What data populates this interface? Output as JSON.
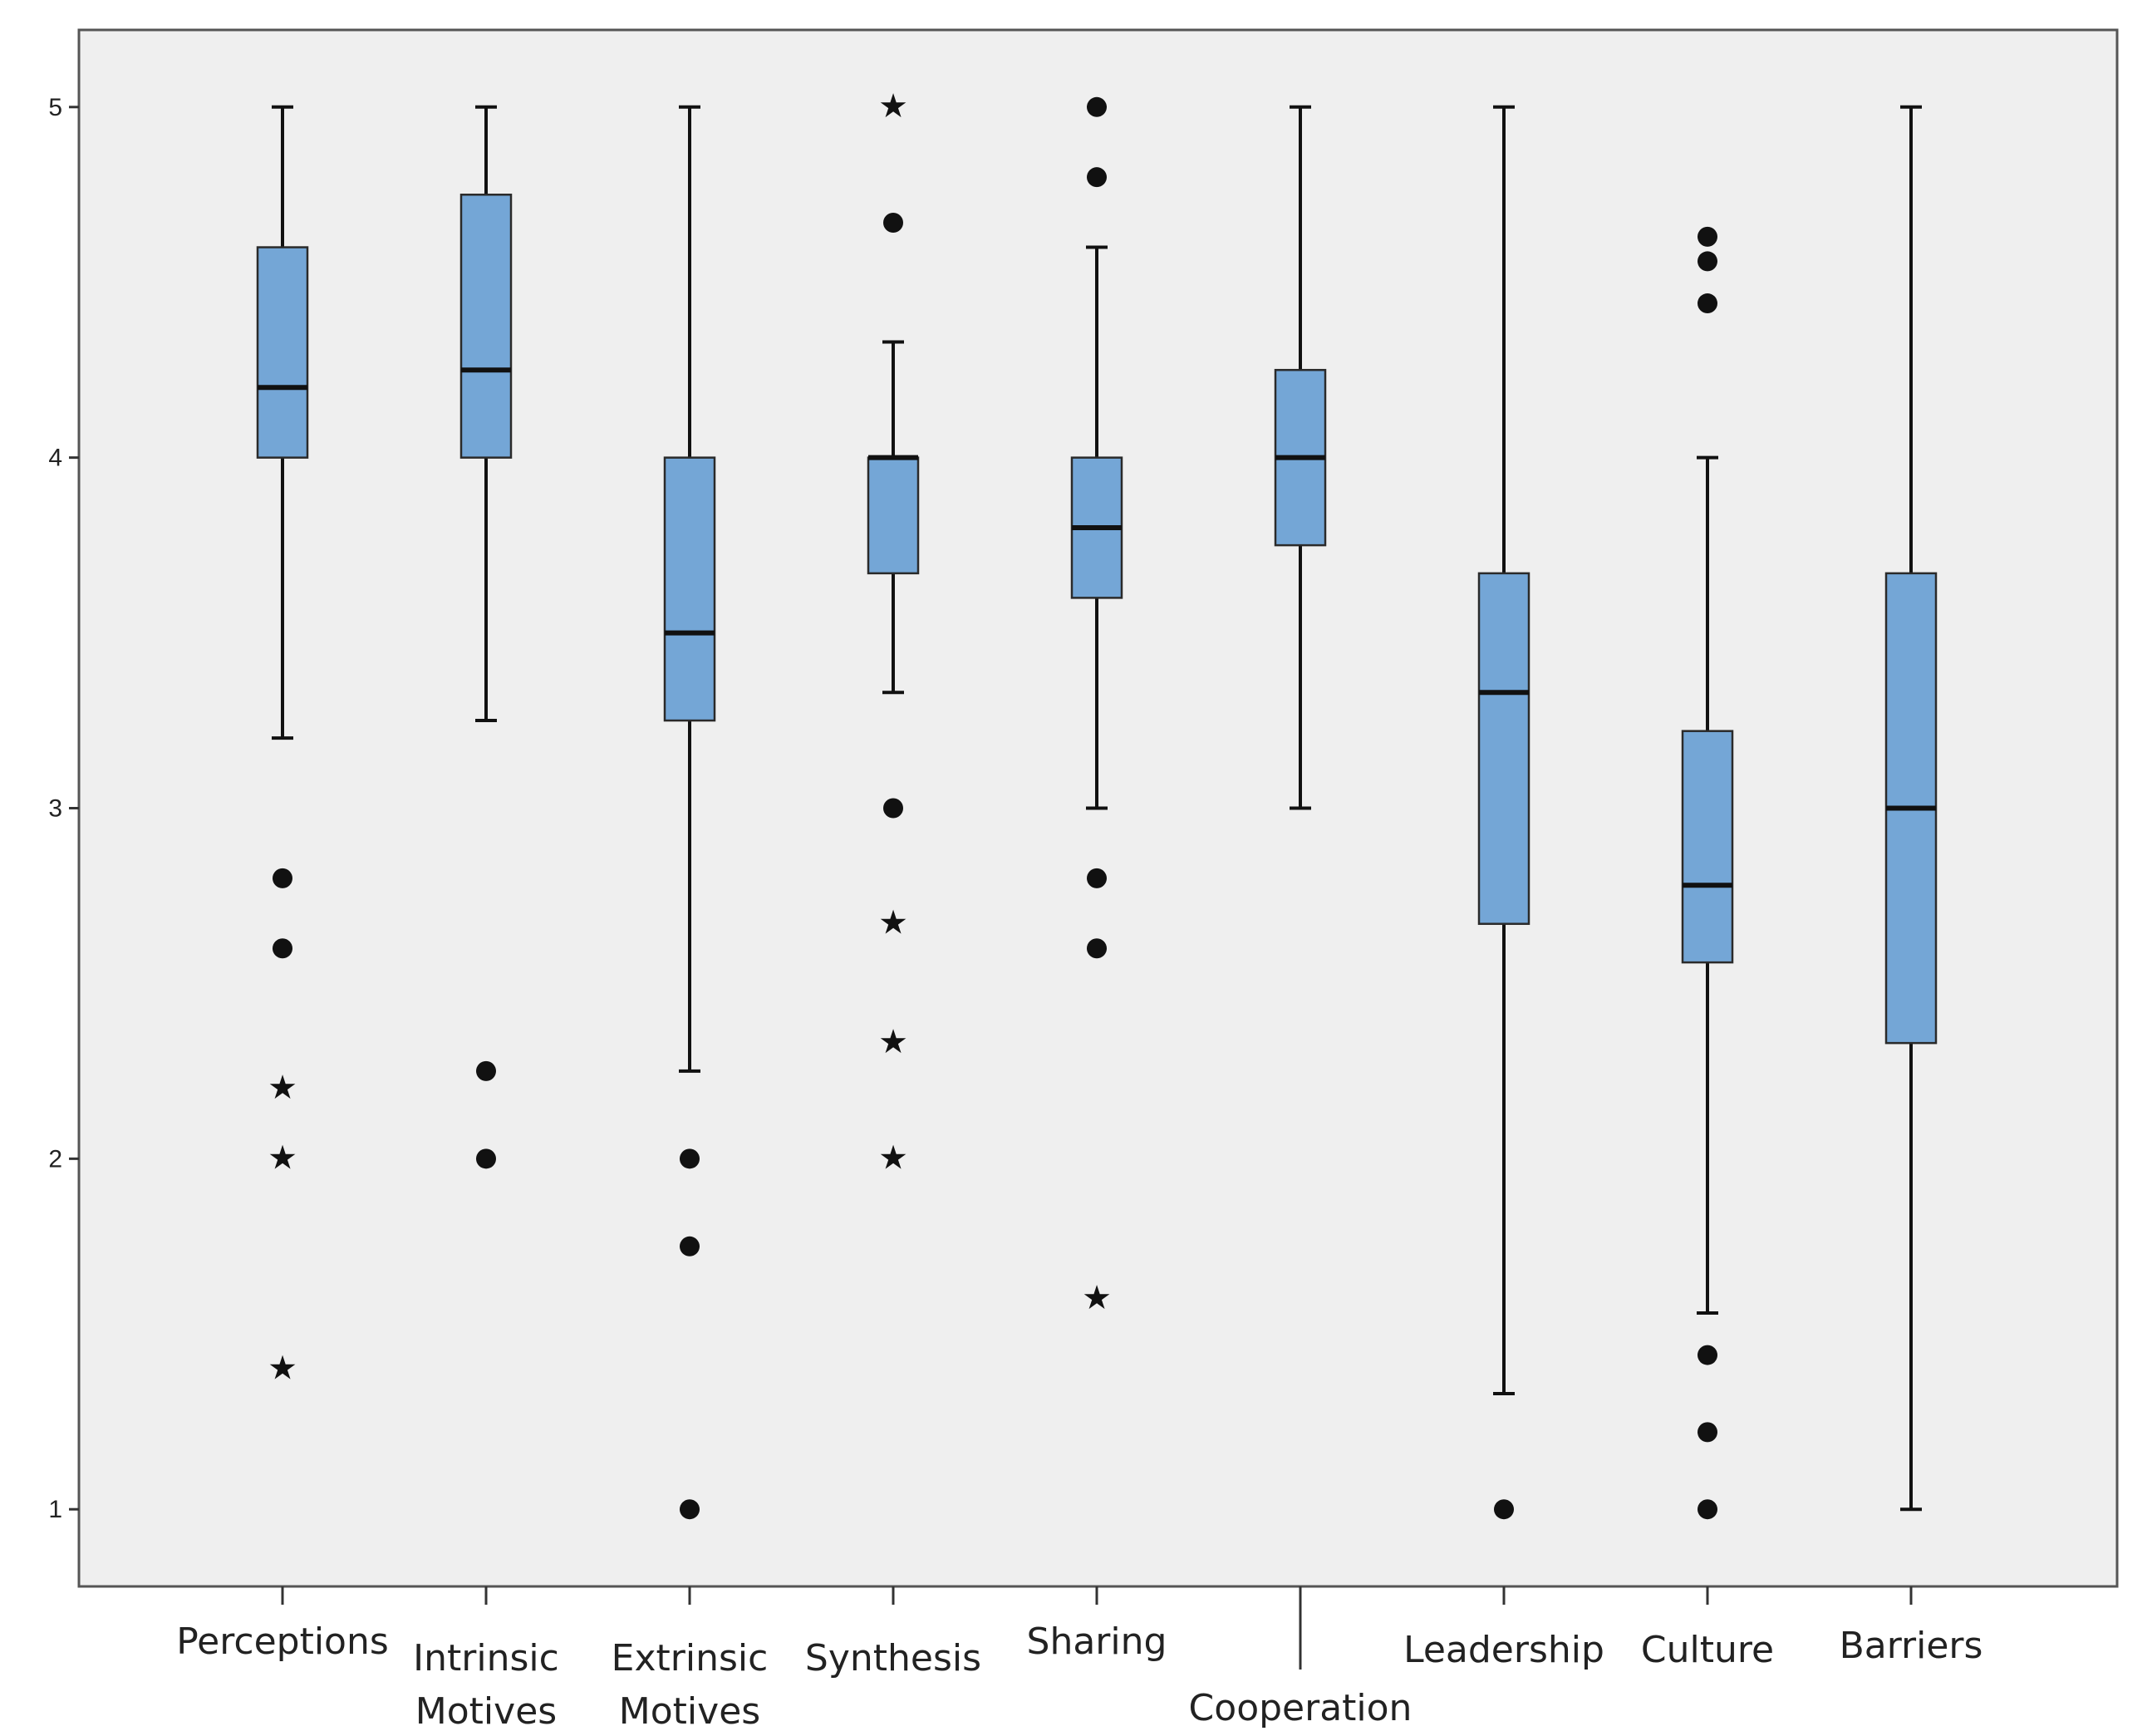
{
  "chart_data": {
    "type": "boxplot",
    "title": "",
    "xlabel": "",
    "ylabel": "",
    "ylim": [
      0.78,
      5.22
    ],
    "yticks": [
      1,
      2,
      3,
      4,
      5
    ],
    "grid": false,
    "colors": {
      "plot_background": "#efefef",
      "box_fill": "#74a6d6",
      "stroke": "#111111"
    },
    "categories": [
      {
        "label_lines": [
          "Perceptions"
        ],
        "min": 3.2,
        "q1": 4.0,
        "median": 4.2,
        "q3": 4.6,
        "max": 5.0,
        "outliers": [
          2.8,
          2.6
        ],
        "extremes": [
          2.2,
          2.0,
          1.4
        ]
      },
      {
        "label_lines": [
          "Intrinsic",
          "Motives"
        ],
        "min": 3.25,
        "q1": 4.0,
        "median": 4.25,
        "q3": 4.75,
        "max": 5.0,
        "outliers": [
          2.25,
          2.0
        ],
        "extremes": []
      },
      {
        "label_lines": [
          "Extrinsic",
          "Motives"
        ],
        "min": 2.25,
        "q1": 3.25,
        "median": 3.5,
        "q3": 4.0,
        "max": 5.0,
        "outliers": [
          2.0,
          1.75,
          1.0
        ],
        "extremes": []
      },
      {
        "label_lines": [
          "Synthesis"
        ],
        "min": 3.33,
        "q1": 3.67,
        "median": 4.0,
        "q3": 4.0,
        "max": 4.33,
        "outliers": [
          4.67,
          3.0
        ],
        "extremes": [
          5.0,
          2.67,
          2.33,
          2.0
        ]
      },
      {
        "label_lines": [
          "Sharing"
        ],
        "min": 3.0,
        "q1": 3.6,
        "median": 3.8,
        "q3": 4.0,
        "max": 4.6,
        "outliers": [
          5.0,
          4.8,
          2.8,
          2.6
        ],
        "extremes": [
          1.6
        ]
      },
      {
        "label_lines": [
          "Cooperation"
        ],
        "min": 3.0,
        "q1": 3.75,
        "median": 4.0,
        "q3": 4.25,
        "max": 5.0,
        "outliers": [],
        "extremes": []
      },
      {
        "label_lines": [
          "Leadership"
        ],
        "min": 1.33,
        "q1": 2.67,
        "median": 3.33,
        "q3": 3.67,
        "max": 5.0,
        "outliers": [
          1.0
        ],
        "extremes": []
      },
      {
        "label_lines": [
          "Culture"
        ],
        "min": 1.56,
        "q1": 2.56,
        "median": 2.78,
        "q3": 3.22,
        "max": 4.0,
        "outliers": [
          4.63,
          4.56,
          4.44,
          1.44,
          1.22,
          1.0
        ],
        "extremes": []
      },
      {
        "label_lines": [
          "Barriers"
        ],
        "min": 1.0,
        "q1": 2.33,
        "median": 3.0,
        "q3": 3.67,
        "max": 5.0,
        "outliers": [],
        "extremes": []
      }
    ]
  }
}
